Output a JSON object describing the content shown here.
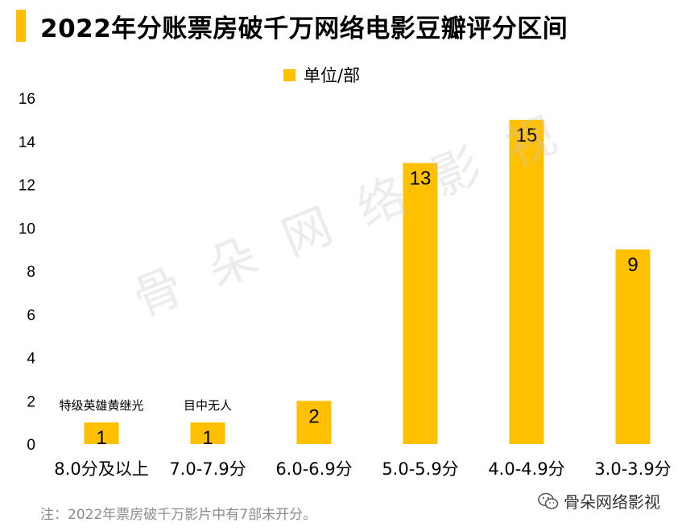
{
  "title": "2022年分账票房破千万网络电影豆瓣评分区间",
  "watermark": "骨朵网络影视",
  "footnote": "注：2022年票房破千万影片中有7部未开分。",
  "brand": {
    "name": "骨朵网络影视",
    "icon": "wechat-icon"
  },
  "colors": {
    "accent": "#FFC000",
    "title_bar": "#FFC000"
  },
  "chart_data": {
    "type": "bar",
    "title": "2022年分账票房破千万网络电影豆瓣评分区间",
    "categories": [
      "8.0分及以上",
      "7.0-7.9分",
      "6.0-6.9分",
      "5.0-5.9分",
      "4.0-4.9分",
      "3.0-3.9分"
    ],
    "series": [
      {
        "name": "单位/部",
        "values": [
          1,
          1,
          2,
          13,
          15,
          9
        ]
      }
    ],
    "annotations": [
      {
        "category": "8.0分及以上",
        "text": "特级英雄黄继光"
      },
      {
        "category": "7.0-7.9分",
        "text": "目中无人"
      }
    ],
    "ylim": [
      0,
      16
    ],
    "yticks": [
      "0",
      "2",
      "4",
      "6",
      "8",
      "10",
      "12",
      "14",
      "16"
    ],
    "xlabel": "",
    "ylabel": "",
    "grid": false,
    "legend": "top-center",
    "data_labels": true
  }
}
